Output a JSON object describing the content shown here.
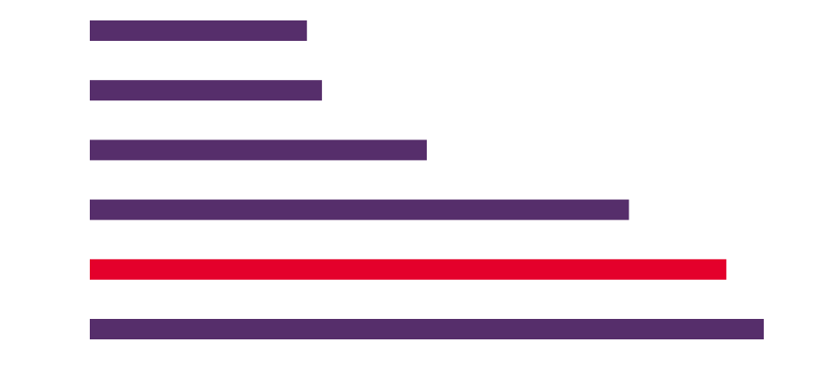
{
  "chart_data": {
    "type": "bar",
    "orientation": "horizontal",
    "title": "",
    "xlabel": "",
    "ylabel": "",
    "values": [
      29.0,
      31.0,
      45.0,
      72.0,
      85.0,
      90.0
    ],
    "highlight_index": 4,
    "xlim": [
      0,
      90
    ],
    "grid": false,
    "legend": "none",
    "colors": {
      "default": "#562e6b",
      "highlight": "#e4002b",
      "background": "#ffffff"
    }
  }
}
